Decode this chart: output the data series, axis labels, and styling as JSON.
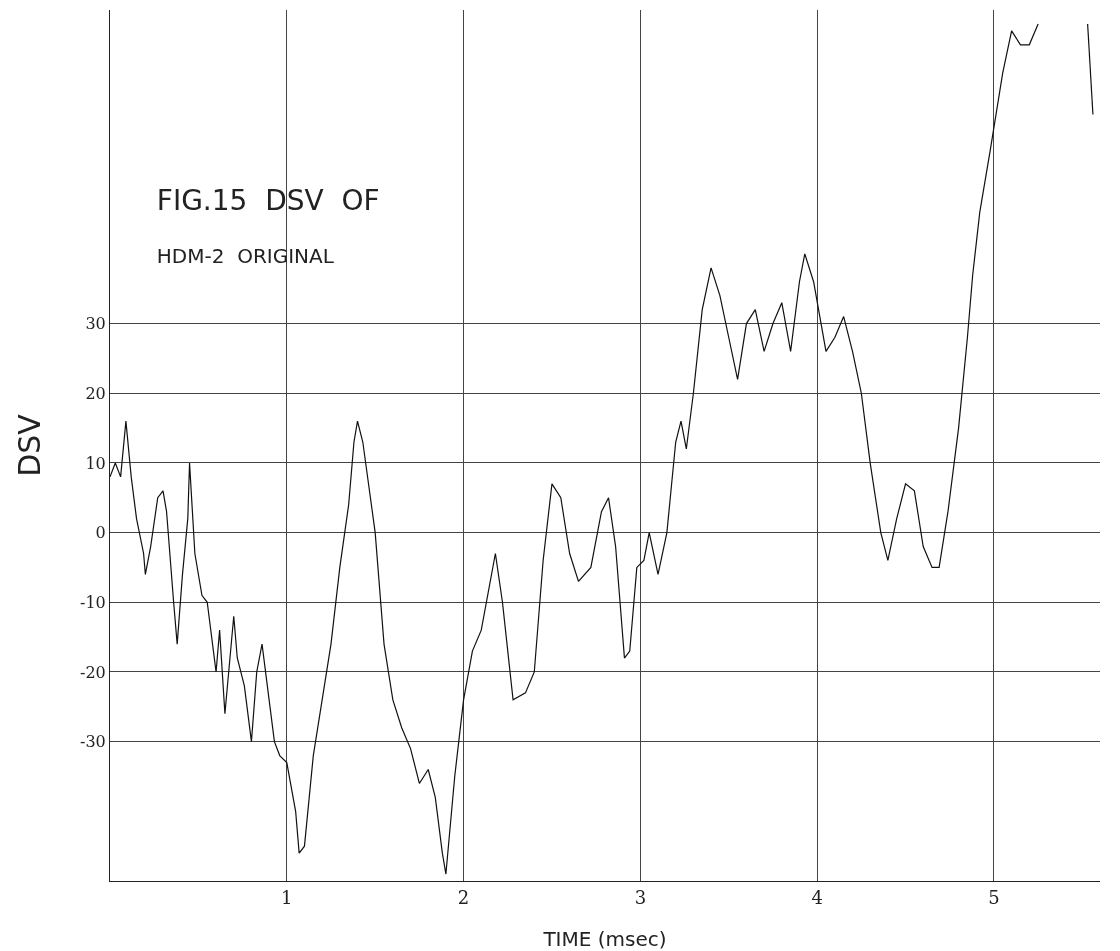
{
  "chart_data": {
    "type": "line",
    "title": "FIG.15  DSV  OF",
    "subtitle": "HDM-2  ORIGINAL",
    "xlabel": "TIME (msec)",
    "ylabel": "DSV",
    "x": [
      0,
      0.03,
      0.06,
      0.09,
      0.12,
      0.15,
      0.19,
      0.2,
      0.23,
      0.27,
      0.3,
      0.32,
      0.36,
      0.38,
      0.41,
      0.44,
      0.45,
      0.48,
      0.52,
      0.55,
      0.6,
      0.62,
      0.65,
      0.7,
      0.72,
      0.76,
      0.8,
      0.83,
      0.86,
      0.9,
      0.93,
      0.96,
      1.0,
      1.05,
      1.07,
      1.1,
      1.15,
      1.2,
      1.25,
      1.3,
      1.35,
      1.38,
      1.4,
      1.43,
      1.5,
      1.55,
      1.6,
      1.65,
      1.7,
      1.75,
      1.8,
      1.84,
      1.88,
      1.9,
      1.95,
      2.0,
      2.05,
      2.1,
      2.18,
      2.22,
      2.28,
      2.35,
      2.4,
      2.45,
      2.5,
      2.55,
      2.6,
      2.65,
      2.72,
      2.78,
      2.82,
      2.86,
      2.91,
      2.94,
      2.98,
      3.02,
      3.05,
      3.1,
      3.15,
      3.2,
      3.23,
      3.26,
      3.3,
      3.35,
      3.4,
      3.45,
      3.5,
      3.55,
      3.6,
      3.65,
      3.7,
      3.75,
      3.8,
      3.85,
      3.9,
      3.93,
      3.98,
      4.05,
      4.1,
      4.15,
      4.2,
      4.25,
      4.3,
      4.36,
      4.4,
      4.45,
      4.5,
      4.55,
      4.6,
      4.65,
      4.69,
      4.74,
      4.8,
      4.85,
      4.88,
      4.92,
      4.98,
      5.05,
      5.1,
      5.15,
      5.2,
      5.25,
      5.4,
      5.53,
      5.56
    ],
    "series": [
      {
        "color": "#111111",
        "values": [
          8,
          10,
          8,
          16,
          8,
          2,
          -3,
          -6,
          -2,
          5,
          6,
          3,
          -10,
          -16,
          -6,
          2,
          10,
          -3,
          -9,
          -10,
          -20,
          -14,
          -26,
          -12,
          -18,
          -22,
          -30,
          -20,
          -16,
          -24,
          -30,
          -32,
          -33,
          -40,
          -46,
          -45,
          -32,
          -24,
          -16,
          -5,
          4,
          13,
          16,
          13,
          0,
          -16,
          -24,
          -28,
          -31,
          -36,
          -34,
          -38,
          -46,
          -49,
          -35,
          -24,
          -17,
          -14,
          -3,
          -10,
          -24,
          -23,
          -20,
          -4,
          7,
          5,
          -3,
          -7,
          -5,
          3,
          5,
          -2,
          -18,
          -17,
          -5,
          -4,
          0,
          -6,
          0,
          13,
          16,
          12,
          20,
          32,
          38,
          34,
          28,
          22,
          30,
          32,
          26,
          30,
          33,
          26,
          36,
          40,
          36,
          26,
          28,
          31,
          26,
          20,
          10,
          0,
          -4,
          2,
          7,
          6,
          -2,
          -5,
          -5,
          3,
          15,
          28,
          37,
          46,
          55,
          66,
          72,
          70,
          70,
          73,
          null,
          73,
          60
        ]
      }
    ],
    "xlim": [
      0,
      5.6
    ],
    "ylim": [
      -50,
      75
    ],
    "xticks": [
      1,
      2,
      3,
      4,
      5
    ],
    "yticks": [
      -30,
      -20,
      -10,
      0,
      10,
      20,
      30
    ],
    "grid": true,
    "marker": "none",
    "line_style": "solid"
  }
}
